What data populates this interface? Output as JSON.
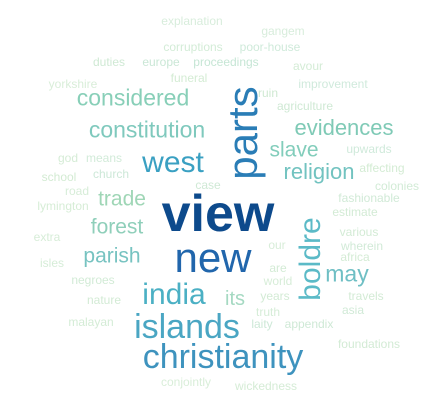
{
  "word_cloud": {
    "words": [
      {
        "text": "view",
        "color": "#0d4a8c"
      },
      {
        "text": "new",
        "color": "#2166ac"
      },
      {
        "text": "parts",
        "color": "#2a7db6"
      },
      {
        "text": "christianity",
        "color": "#3e93be"
      },
      {
        "text": "islands",
        "color": "#4aa6c3"
      },
      {
        "text": "india",
        "color": "#4bb0c4"
      },
      {
        "text": "west",
        "color": "#3aa0c2"
      },
      {
        "text": "boldre",
        "color": "#5bbac7"
      },
      {
        "text": "considered",
        "color": "#88cfb8"
      },
      {
        "text": "constitution",
        "color": "#7fc9bd"
      },
      {
        "text": "evidences",
        "color": "#7fcab6"
      },
      {
        "text": "slave",
        "color": "#82cdbb"
      },
      {
        "text": "religion",
        "color": "#72c3c0"
      },
      {
        "text": "trade",
        "color": "#9fd6b6"
      },
      {
        "text": "forest",
        "color": "#8fcfba"
      },
      {
        "text": "parish",
        "color": "#77c3c1"
      },
      {
        "text": "may",
        "color": "#6fbfc4"
      },
      {
        "text": "its",
        "color": "#a5d9c2"
      },
      {
        "text": "explanation",
        "color": "#d8eddc"
      },
      {
        "text": "gangem",
        "color": "#d8eddc"
      },
      {
        "text": "corruptions",
        "color": "#d3ecd7"
      },
      {
        "text": "poor-house",
        "color": "#cfeada"
      },
      {
        "text": "duties",
        "color": "#cfe9d4"
      },
      {
        "text": "europe",
        "color": "#cae7d6"
      },
      {
        "text": "proceedings",
        "color": "#c6e6d5"
      },
      {
        "text": "avour",
        "color": "#d4ecd6"
      },
      {
        "text": "yorkshire",
        "color": "#d9eed9"
      },
      {
        "text": "funeral",
        "color": "#d4ecd4"
      },
      {
        "text": "ruin",
        "color": "#cfe9d2"
      },
      {
        "text": "improvement",
        "color": "#d0eadc"
      },
      {
        "text": "agriculture",
        "color": "#cfe9d4"
      },
      {
        "text": "upwards",
        "color": "#d0eadb"
      },
      {
        "text": "god",
        "color": "#d5ecd6"
      },
      {
        "text": "means",
        "color": "#d2ebd9"
      },
      {
        "text": "affecting",
        "color": "#d4ecd4"
      },
      {
        "text": "school",
        "color": "#d3ebd3"
      },
      {
        "text": "church",
        "color": "#cde8d8"
      },
      {
        "text": "colonies",
        "color": "#d2ebd6"
      },
      {
        "text": "road",
        "color": "#d7edd8"
      },
      {
        "text": "case",
        "color": "#cfe9d5"
      },
      {
        "text": "fashionable",
        "color": "#d1ead7"
      },
      {
        "text": "lymington",
        "color": "#d6edd6"
      },
      {
        "text": "estimate",
        "color": "#d3ebd5"
      },
      {
        "text": "extra",
        "color": "#d7edd8"
      },
      {
        "text": "various",
        "color": "#d3ebd5"
      },
      {
        "text": "wherein",
        "color": "#d1ead7"
      },
      {
        "text": "our",
        "color": "#d8edd9"
      },
      {
        "text": "isles",
        "color": "#d6edd8"
      },
      {
        "text": "africa",
        "color": "#d5ecd6"
      },
      {
        "text": "are",
        "color": "#d3ebd5"
      },
      {
        "text": "negroes",
        "color": "#d2ebd6"
      },
      {
        "text": "world",
        "color": "#d7edd8"
      },
      {
        "text": "travels",
        "color": "#d3ebd5"
      },
      {
        "text": "years",
        "color": "#d3ebd5"
      },
      {
        "text": "nature",
        "color": "#d3ebd5"
      },
      {
        "text": "asia",
        "color": "#d1ead7"
      },
      {
        "text": "truth",
        "color": "#d6edd8"
      },
      {
        "text": "malayan",
        "color": "#d4ecd6"
      },
      {
        "text": "laity",
        "color": "#cde8d7"
      },
      {
        "text": "appendix",
        "color": "#cfe9d6"
      },
      {
        "text": "foundations",
        "color": "#d3ebd5"
      },
      {
        "text": "conjointly",
        "color": "#d9eed9"
      },
      {
        "text": "wickedness",
        "color": "#d5ecd6"
      }
    ]
  }
}
